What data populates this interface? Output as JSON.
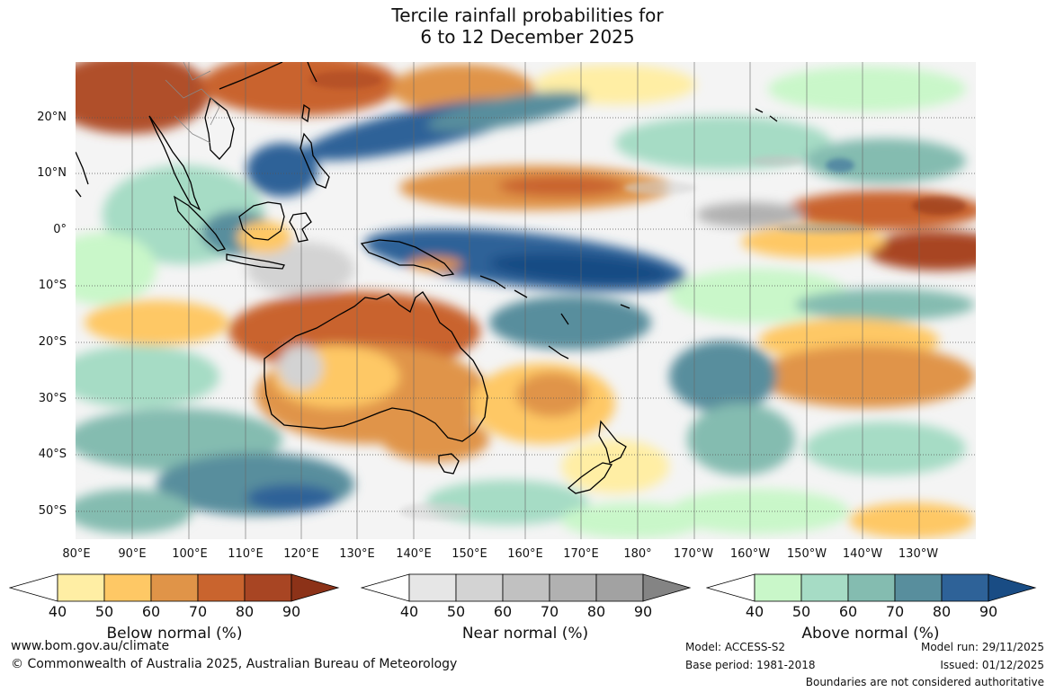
{
  "title": {
    "line1": "Tercile rainfall probabilities for",
    "line2": "6 to 12 December 2025"
  },
  "map": {
    "lat_labels": [
      "20°N",
      "10°N",
      "0°",
      "10°S",
      "20°S",
      "30°S",
      "40°S",
      "50°S"
    ],
    "lon_labels": [
      "80°E",
      "90°E",
      "100°E",
      "110°E",
      "120°E",
      "130°E",
      "140°E",
      "150°E",
      "160°E",
      "170°E",
      "180°",
      "170°W",
      "160°W",
      "150°W",
      "140°W",
      "130°W"
    ]
  },
  "legends": [
    {
      "label": "Below normal (%)",
      "ticks": [
        "40",
        "50",
        "60",
        "70",
        "80",
        "90"
      ],
      "colors": [
        "#ffffff",
        "#ffeea4",
        "#fec865",
        "#e09448",
        "#c9642e",
        "#a84523",
        "#8c3218"
      ]
    },
    {
      "label": "Near normal (%)",
      "ticks": [
        "40",
        "50",
        "60",
        "70",
        "80",
        "90"
      ],
      "colors": [
        "#ffffff",
        "#e6e6e6",
        "#d3d3d3",
        "#c1c1c1",
        "#b1b1b1",
        "#a2a2a2",
        "#848484"
      ]
    },
    {
      "label": "Above normal (%)",
      "ticks": [
        "40",
        "50",
        "60",
        "70",
        "80",
        "90"
      ],
      "colors": [
        "#ffffff",
        "#c9f7c9",
        "#a6dcc5",
        "#84bcb0",
        "#588e9d",
        "#2e6298",
        "#194c84"
      ]
    }
  ],
  "footer": {
    "website": "www.bom.gov.au/climate",
    "copyright": "© Commonwealth of Australia 2025, Australian Bureau of Meteorology",
    "model": "Model: ACCESS-S2",
    "base_period": "Base period: 1981-2018",
    "model_run": "Model run: 29/11/2025",
    "issued": "Issued: 01/12/2025",
    "disclaimer": "Boundaries are not considered authoritative"
  }
}
